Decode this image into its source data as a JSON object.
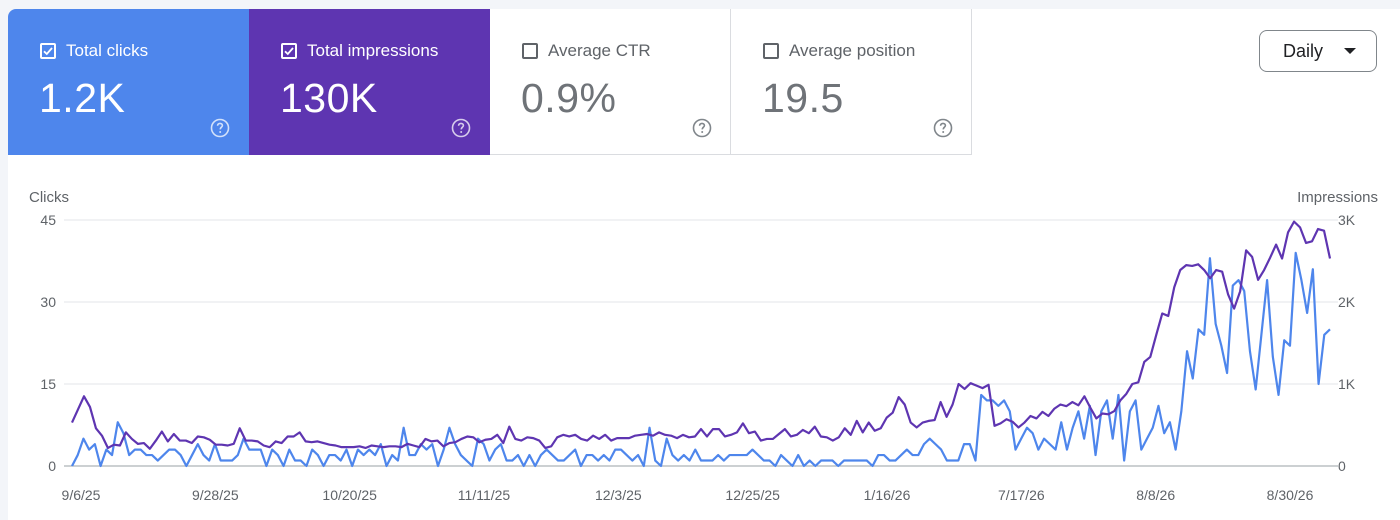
{
  "metrics": [
    {
      "id": "clicks",
      "label": "Total clicks",
      "value": "1.2K",
      "checked": true,
      "color": "#4e86ec"
    },
    {
      "id": "impressions",
      "label": "Total impressions",
      "value": "130K",
      "checked": true,
      "color": "#5e35b1"
    },
    {
      "id": "ctr",
      "label": "Average CTR",
      "value": "0.9%",
      "checked": false
    },
    {
      "id": "position",
      "label": "Average position",
      "value": "19.5",
      "checked": false
    }
  ],
  "granularity": {
    "label": "Daily"
  },
  "chart_data": {
    "type": "line",
    "grid": true,
    "left_axis": {
      "title": "Clicks",
      "ticks": [
        "45",
        "30",
        "15",
        "0"
      ],
      "ylim": [
        0,
        45
      ]
    },
    "right_axis": {
      "title": "Impressions",
      "ticks": [
        "3K",
        "2K",
        "1K",
        "0"
      ],
      "ylim": [
        0,
        3000
      ]
    },
    "x_tick_labels": [
      "9/6/25",
      "9/28/25",
      "10/20/25",
      "11/11/25",
      "12/3/25",
      "12/25/25",
      "1/16/26",
      "7/17/26",
      "8/8/26",
      "8/30/26"
    ],
    "series": [
      {
        "axis": "left",
        "color": "#4e86ec",
        "values": [
          0,
          2,
          5,
          3,
          4,
          0,
          3,
          2,
          8,
          6,
          2,
          3,
          3,
          2,
          2,
          1,
          2,
          3,
          3,
          2,
          0,
          2,
          4,
          2,
          1,
          4,
          1,
          1,
          1,
          2,
          5,
          3,
          3,
          3,
          0,
          3,
          2,
          0,
          3,
          1,
          1,
          0,
          3,
          2,
          0,
          2,
          2,
          1,
          3,
          0,
          3,
          2,
          3,
          2,
          4,
          0,
          2,
          1,
          7,
          2,
          2,
          4,
          3,
          4,
          0,
          3,
          7,
          4,
          2,
          1,
          0,
          5,
          4,
          1,
          3,
          4,
          1,
          1,
          2,
          0,
          2,
          0,
          2,
          3,
          2,
          1,
          1,
          2,
          3,
          0,
          2,
          2,
          1,
          2,
          1,
          3,
          3,
          2,
          1,
          2,
          0,
          7,
          1,
          0,
          5,
          2,
          1,
          2,
          1,
          3,
          1,
          1,
          1,
          2,
          1,
          2,
          2,
          2,
          2,
          3,
          2,
          1,
          1,
          0,
          2,
          1,
          0,
          2,
          0,
          1,
          0,
          1,
          1,
          1,
          0,
          1,
          1,
          1,
          1,
          1,
          0,
          2,
          2,
          1,
          1,
          2,
          3,
          2,
          2,
          4,
          5,
          4,
          3,
          1,
          1,
          1,
          4,
          4,
          1,
          13,
          12,
          12,
          11,
          12,
          10,
          3,
          5,
          7,
          6,
          3,
          5,
          4,
          3,
          8,
          3,
          7,
          10,
          5,
          11,
          2,
          10,
          12,
          5,
          13,
          1,
          10,
          12,
          3,
          5,
          7,
          11,
          6,
          8,
          3,
          10,
          21,
          16,
          25,
          24,
          38,
          26,
          22,
          17,
          33,
          34,
          32,
          21,
          14,
          24,
          34,
          20,
          13,
          23,
          22,
          39,
          34,
          28,
          36,
          15,
          24,
          25
        ]
      },
      {
        "axis": "right",
        "color": "#5e35b1",
        "values": [
          530,
          690,
          850,
          720,
          460,
          370,
          220,
          260,
          250,
          410,
          330,
          270,
          280,
          210,
          310,
          420,
          300,
          390,
          310,
          310,
          280,
          360,
          350,
          320,
          260,
          260,
          250,
          270,
          460,
          310,
          310,
          300,
          250,
          230,
          300,
          280,
          360,
          360,
          410,
          300,
          290,
          300,
          280,
          260,
          250,
          230,
          230,
          230,
          240,
          220,
          250,
          240,
          230,
          240,
          240,
          230,
          270,
          250,
          230,
          330,
          300,
          310,
          240,
          280,
          290,
          330,
          360,
          350,
          290,
          320,
          330,
          380,
          280,
          480,
          330,
          310,
          350,
          340,
          310,
          220,
          240,
          350,
          380,
          360,
          380,
          330,
          310,
          370,
          330,
          380,
          310,
          340,
          340,
          340,
          370,
          380,
          390,
          370,
          410,
          380,
          370,
          340,
          380,
          350,
          360,
          450,
          360,
          450,
          450,
          360,
          380,
          410,
          520,
          400,
          420,
          310,
          330,
          330,
          390,
          450,
          360,
          380,
          440,
          400,
          480,
          360,
          350,
          310,
          350,
          460,
          380,
          550,
          410,
          530,
          430,
          460,
          590,
          650,
          840,
          750,
          530,
          470,
          530,
          550,
          560,
          780,
          600,
          750,
          1000,
          940,
          1010,
          980,
          950,
          990,
          490,
          520,
          570,
          540,
          470,
          530,
          610,
          580,
          660,
          610,
          700,
          750,
          730,
          780,
          740,
          850,
          710,
          580,
          640,
          630,
          670,
          800,
          880,
          1000,
          1020,
          1270,
          1330,
          1600,
          1860,
          1830,
          2180,
          2390,
          2450,
          2440,
          2460,
          2390,
          2290,
          2390,
          2370,
          2090,
          1920,
          2130,
          2630,
          2550,
          2270,
          2390,
          2540,
          2700,
          2530,
          2850,
          2980,
          2910,
          2720,
          2740,
          2890,
          2870,
          2530
        ]
      }
    ]
  }
}
